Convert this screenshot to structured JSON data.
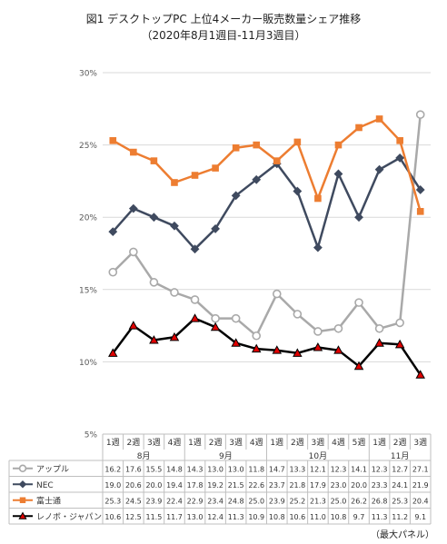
{
  "title": "図1 デスクトップPC 上位4メーカー販売数量シェア推移",
  "subtitle": "（2020年8月1週目-11月3週目）",
  "source": "（最大パネル）",
  "chart_data": {
    "type": "line",
    "ylim": [
      5,
      30
    ],
    "yticks": [
      "5%",
      "10%",
      "15%",
      "20%",
      "25%",
      "30%"
    ],
    "grid": true,
    "weeks": [
      "1週",
      "2週",
      "3週",
      "4週",
      "1週",
      "2週",
      "3週",
      "4週",
      "1週",
      "2週",
      "3週",
      "4週",
      "5週",
      "1週",
      "2週",
      "3週"
    ],
    "months": [
      {
        "label": "8月",
        "start": 0,
        "end": 3
      },
      {
        "label": "9月",
        "start": 4,
        "end": 7
      },
      {
        "label": "10月",
        "start": 8,
        "end": 12
      },
      {
        "label": "11月",
        "start": 13,
        "end": 15
      }
    ],
    "series": [
      {
        "name": "アップル",
        "color": "#a9a9a9",
        "marker": "circle",
        "values": [
          16.2,
          17.6,
          15.5,
          14.8,
          14.3,
          13.0,
          13.0,
          11.8,
          14.7,
          13.3,
          12.1,
          12.3,
          14.1,
          12.3,
          12.7,
          27.1
        ]
      },
      {
        "name": "NEC",
        "color": "#3f4a5f",
        "marker": "diamond",
        "values": [
          19.0,
          20.6,
          20.0,
          19.4,
          17.8,
          19.2,
          21.5,
          22.6,
          23.7,
          21.8,
          17.9,
          23.0,
          20.0,
          23.3,
          24.1,
          21.9
        ]
      },
      {
        "name": "富士通",
        "color": "#ed7d31",
        "marker": "square",
        "values": [
          25.3,
          24.5,
          23.9,
          22.4,
          22.9,
          23.4,
          24.8,
          25.0,
          23.9,
          25.2,
          21.3,
          25.0,
          26.2,
          26.8,
          25.3,
          20.4
        ]
      },
      {
        "name": "レノボ・ジャパン",
        "color": "#000000",
        "marker": "triangle",
        "values": [
          10.6,
          12.5,
          11.5,
          11.7,
          13.0,
          12.4,
          11.3,
          10.9,
          10.8,
          10.6,
          11.0,
          10.8,
          9.7,
          11.3,
          11.2,
          9.1
        ]
      }
    ]
  }
}
